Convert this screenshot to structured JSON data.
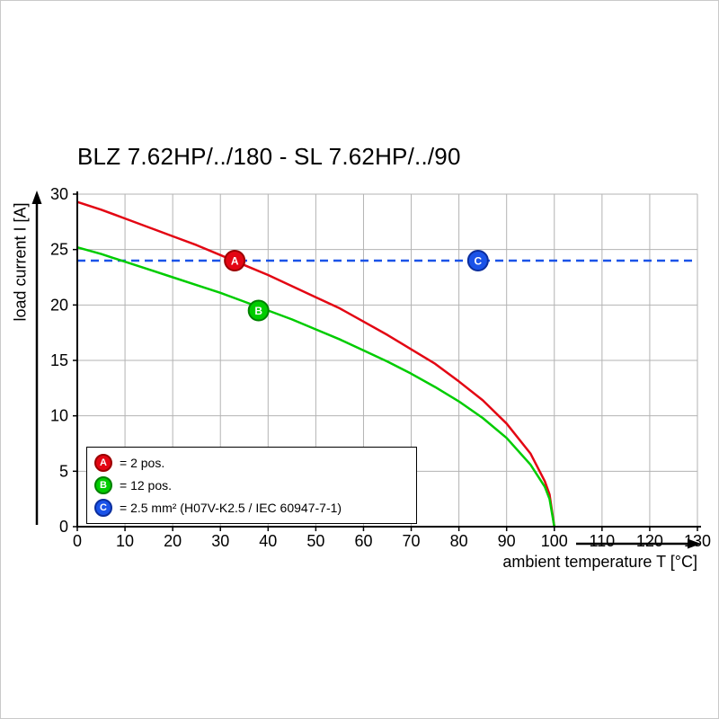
{
  "title": "BLZ 7.62HP/../180 - SL 7.62HP/../90",
  "chart_data": {
    "type": "line",
    "title": "BLZ 7.62HP/../180 - SL 7.62HP/../90",
    "xlabel": "ambient temperature T [°C]",
    "ylabel": "load current I [A]",
    "xlim": [
      0,
      130
    ],
    "ylim": [
      0,
      30
    ],
    "xticks": [
      0,
      10,
      20,
      30,
      40,
      50,
      60,
      70,
      80,
      90,
      100,
      110,
      120,
      130
    ],
    "yticks": [
      0,
      5,
      10,
      15,
      20,
      25,
      30
    ],
    "grid": true,
    "grid_color": "#b3b3b3",
    "legend_position": "lower-left",
    "series": [
      {
        "name": "A",
        "label": "= 2 pos.",
        "color": "#e30613",
        "edge_color": "#9b0000",
        "style": "solid",
        "x": [
          0,
          5,
          10,
          15,
          20,
          25,
          30,
          35,
          40,
          45,
          50,
          55,
          60,
          65,
          70,
          75,
          80,
          85,
          90,
          95,
          98,
          99,
          100
        ],
        "values": [
          29.3,
          28.6,
          27.8,
          27.0,
          26.2,
          25.4,
          24.5,
          23.6,
          22.7,
          21.7,
          20.7,
          19.7,
          18.5,
          17.3,
          16.0,
          14.7,
          13.1,
          11.4,
          9.3,
          6.6,
          4.1,
          2.9,
          0
        ],
        "marker": {
          "x": 33,
          "y": 24
        }
      },
      {
        "name": "B",
        "label": "= 12 pos.",
        "color": "#00cc00",
        "edge_color": "#008000",
        "style": "solid",
        "x": [
          0,
          5,
          10,
          15,
          20,
          25,
          30,
          35,
          40,
          45,
          50,
          55,
          60,
          65,
          70,
          75,
          80,
          85,
          90,
          95,
          98,
          99,
          100
        ],
        "values": [
          25.2,
          24.6,
          23.9,
          23.2,
          22.5,
          21.8,
          21.1,
          20.3,
          19.5,
          18.7,
          17.8,
          16.9,
          15.9,
          14.9,
          13.8,
          12.6,
          11.3,
          9.8,
          8.0,
          5.6,
          3.6,
          2.5,
          0
        ],
        "marker": {
          "x": 38,
          "y": 19.5
        }
      },
      {
        "name": "C",
        "label": "= 2.5 mm² (H07V-K2.5 / IEC 60947-7-1)",
        "color": "#1a53e8",
        "edge_color": "#0b2e9e",
        "style": "dashed",
        "x": [
          0,
          130
        ],
        "values": [
          24,
          24
        ],
        "marker": {
          "x": 84,
          "y": 24
        }
      }
    ]
  }
}
